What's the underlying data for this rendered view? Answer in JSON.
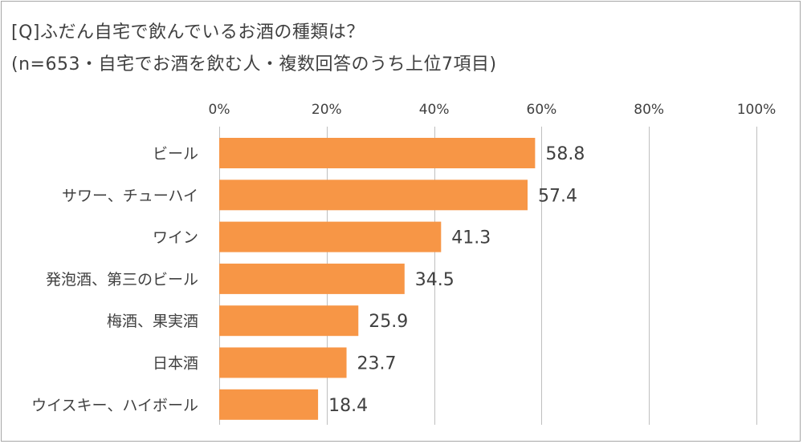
{
  "chart_data": {
    "type": "bar",
    "orientation": "horizontal",
    "title": "[Q]ふだん自宅で飲んでいるお酒の種類は？",
    "subtitle": "(n=653・自宅でお酒を飲む人・複数回答のうち上位7項目)",
    "categories": [
      "ビール",
      "サワー、チューハイ",
      "ワイン",
      "発泡酒、第三のビール",
      "梅酒、果実酒",
      "日本酒",
      "ウイスキー、ハイボール"
    ],
    "values": [
      58.8,
      57.4,
      41.3,
      34.5,
      25.9,
      23.7,
      18.4
    ],
    "xlim": [
      0,
      100
    ],
    "ticks": [
      0,
      20,
      40,
      60,
      80,
      100
    ],
    "tick_labels": [
      "0%",
      "20%",
      "40%",
      "60%",
      "80%",
      "100%"
    ],
    "axis_position": "top",
    "grid": true,
    "bar_color": "#f79646",
    "grid_color": "#bfbfbf"
  }
}
